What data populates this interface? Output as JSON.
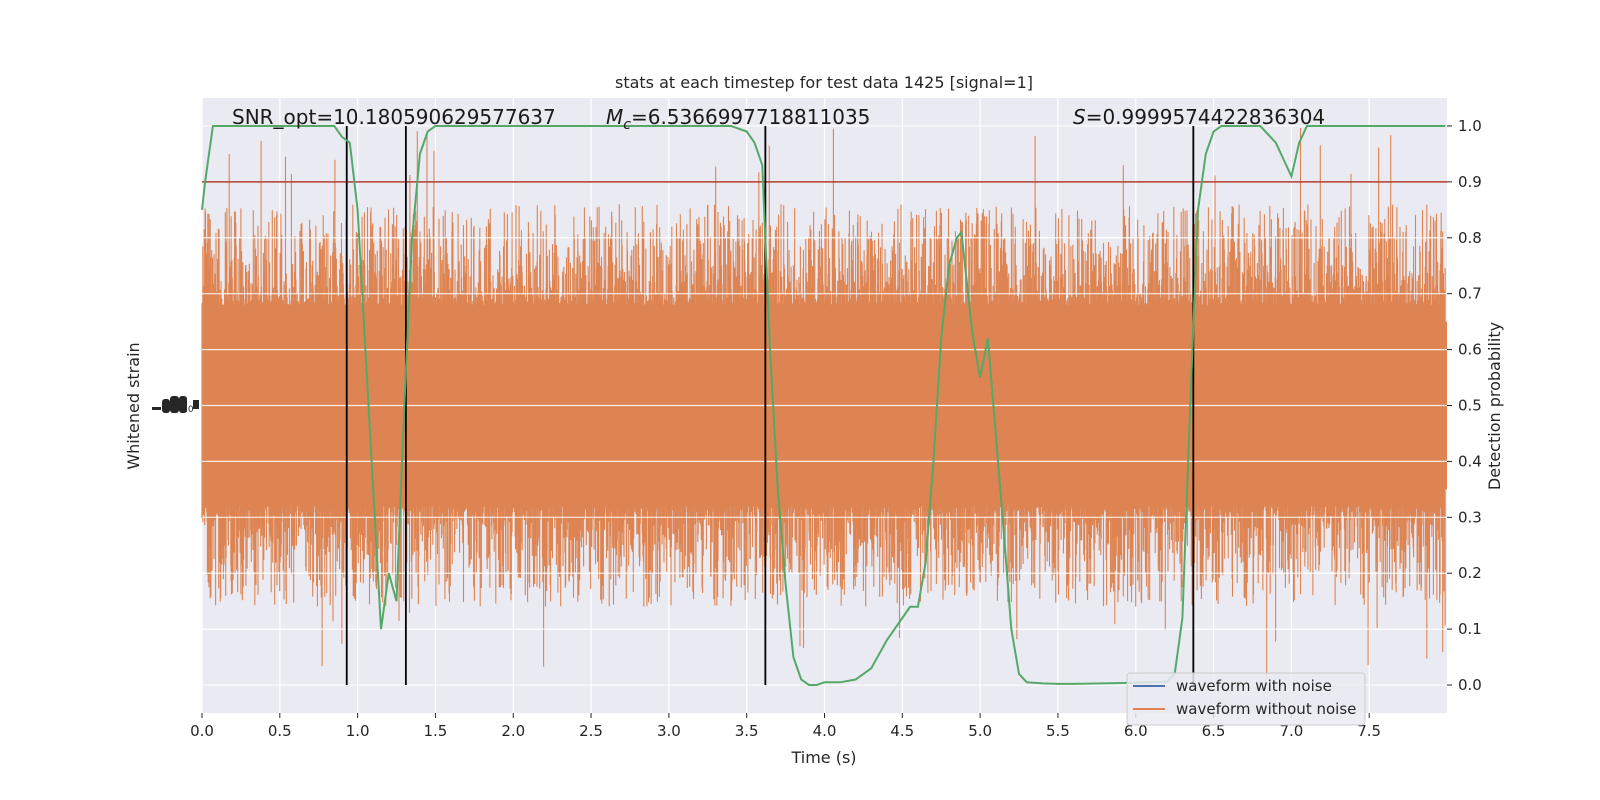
{
  "chart_data": {
    "type": "line",
    "title": "stats at each timestep for test data 1425 [signal=1]",
    "xlabel": "Time (s)",
    "ylabel_left": "Whitened strain",
    "ylabel_right": "Detection probability",
    "xlim": [
      0.0,
      8.0
    ],
    "ylim_right": [
      -0.05,
      1.05
    ],
    "x_ticks": [
      "0.0",
      "0.5",
      "1.0",
      "1.5",
      "2.0",
      "2.5",
      "3.0",
      "3.5",
      "4.0",
      "4.5",
      "5.0",
      "5.5",
      "6.0",
      "6.5",
      "7.0",
      "7.5"
    ],
    "y_ticks_right": [
      "0.0",
      "0.1",
      "0.2",
      "0.3",
      "0.4",
      "0.5",
      "0.6",
      "0.7",
      "0.8",
      "0.9",
      "1.0"
    ],
    "grid": true,
    "legend_position": "bottom-right",
    "annotations": {
      "snr": "SNR_opt=10.180590629577637",
      "mc_symbol": "M",
      "mc_sub": "c",
      "mc_value": "=6.5366997718811035",
      "s_symbol": "S",
      "s_value": "=0.9999574422836304"
    },
    "threshold": 0.9,
    "vertical_lines_x": [
      0.93,
      1.31,
      3.62,
      6.37
    ],
    "series": [
      {
        "name": "waveform with noise",
        "color": "#4c72b0",
        "style": "line"
      },
      {
        "name": "waveform without noise",
        "color": "#dd8452",
        "style": "dense-noise",
        "envelope_right_units": [
          0.3,
          0.7
        ],
        "peak_max": 1.0,
        "trough_min": 0.01
      },
      {
        "color": "#55a868",
        "style": "probability",
        "x": [
          0.0,
          0.02,
          0.07,
          0.17,
          0.27,
          0.37,
          0.47,
          0.57,
          0.67,
          0.77,
          0.85,
          0.9,
          0.95,
          1.0,
          1.05,
          1.1,
          1.15,
          1.2,
          1.25,
          1.3,
          1.35,
          1.4,
          1.45,
          1.5,
          1.6,
          1.7,
          1.8,
          2.0,
          2.2,
          2.4,
          2.6,
          2.8,
          3.0,
          3.2,
          3.4,
          3.5,
          3.55,
          3.6,
          3.65,
          3.7,
          3.75,
          3.8,
          3.85,
          3.9,
          3.95,
          4.0,
          4.1,
          4.2,
          4.3,
          4.4,
          4.5,
          4.55,
          4.6,
          4.65,
          4.7,
          4.75,
          4.8,
          4.85,
          4.88,
          4.95,
          5.0,
          5.05,
          5.1,
          5.15,
          5.2,
          5.25,
          5.3,
          5.4,
          5.5,
          5.6,
          5.8,
          6.0,
          6.2,
          6.25,
          6.3,
          6.35,
          6.4,
          6.45,
          6.5,
          6.55,
          6.6,
          6.7,
          6.8,
          6.9,
          6.95,
          7.0,
          7.05,
          7.1,
          7.2,
          7.4,
          7.6,
          7.8,
          7.99
        ],
        "y": [
          0.85,
          0.9,
          1.0,
          1.0,
          1.0,
          1.0,
          1.0,
          1.0,
          1.0,
          1.0,
          1.0,
          0.98,
          0.97,
          0.85,
          0.6,
          0.35,
          0.1,
          0.2,
          0.15,
          0.5,
          0.8,
          0.95,
          0.99,
          1.0,
          1.0,
          1.0,
          1.0,
          1.0,
          1.0,
          1.0,
          1.0,
          1.0,
          1.0,
          1.0,
          1.0,
          0.99,
          0.97,
          0.93,
          0.6,
          0.35,
          0.18,
          0.05,
          0.01,
          0.0,
          0.0,
          0.005,
          0.005,
          0.01,
          0.03,
          0.08,
          0.12,
          0.14,
          0.14,
          0.22,
          0.4,
          0.62,
          0.75,
          0.8,
          0.81,
          0.63,
          0.55,
          0.62,
          0.45,
          0.28,
          0.1,
          0.02,
          0.005,
          0.003,
          0.002,
          0.002,
          0.003,
          0.004,
          0.006,
          0.02,
          0.12,
          0.5,
          0.85,
          0.95,
          0.99,
          1.0,
          1.0,
          1.0,
          1.0,
          0.97,
          0.94,
          0.91,
          0.97,
          1.0,
          1.0,
          1.0,
          1.0,
          1.0,
          1.0
        ]
      }
    ]
  },
  "left_axis_tick_glyphs": "-3.0"
}
